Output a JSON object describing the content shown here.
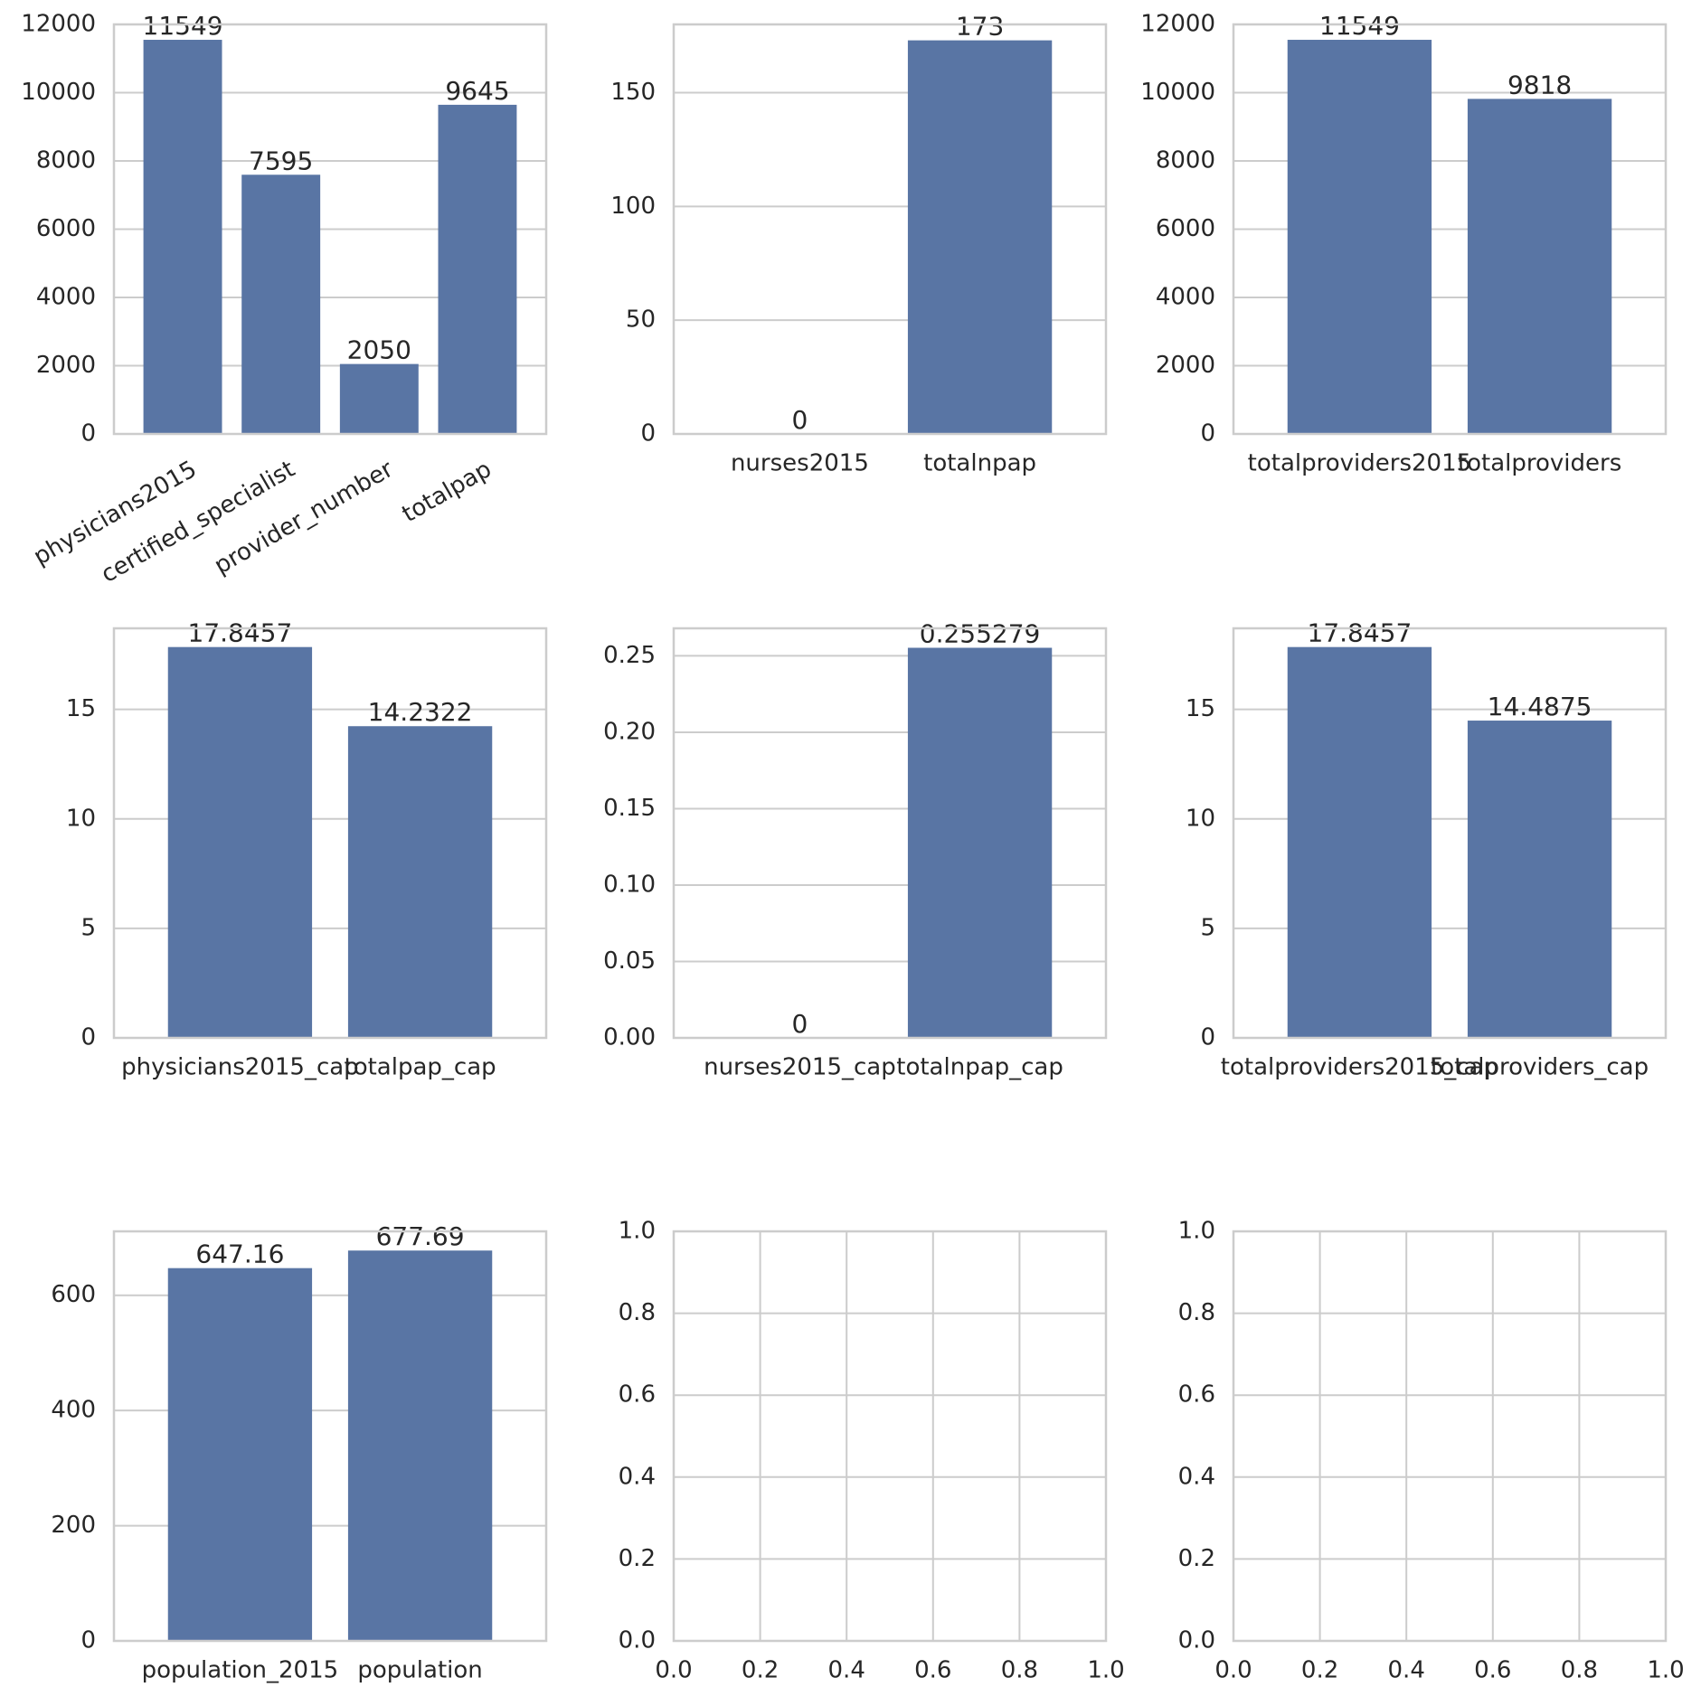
{
  "chart_data": [
    {
      "type": "bar",
      "categories": [
        "physicians2015",
        "certified_specialist",
        "provider_number",
        "totalpap"
      ],
      "values": [
        11549,
        7595,
        2050,
        9645
      ],
      "data_labels": [
        "11549",
        "7595",
        "2050",
        "9645"
      ],
      "ylim": [
        0,
        12000
      ],
      "yticks": [
        "0",
        "2000",
        "4000",
        "6000",
        "8000",
        "10000",
        "12000"
      ],
      "xtick_rotation": 30,
      "grid": "y",
      "color": "#5975a4",
      "title": "",
      "xlabel": "",
      "ylabel": ""
    },
    {
      "type": "bar",
      "categories": [
        "nurses2015",
        "totalnpap"
      ],
      "values": [
        0,
        173
      ],
      "data_labels": [
        "0",
        "173"
      ],
      "ylim": [
        0,
        180
      ],
      "yticks": [
        "0",
        "50",
        "100",
        "150"
      ],
      "grid": "y",
      "color": "#5975a4",
      "title": "",
      "xlabel": "",
      "ylabel": ""
    },
    {
      "type": "bar",
      "categories": [
        "totalproviders2015",
        "totalproviders"
      ],
      "values": [
        11549,
        9818
      ],
      "data_labels": [
        "11549",
        "9818"
      ],
      "ylim": [
        0,
        12000
      ],
      "yticks": [
        "0",
        "2000",
        "4000",
        "6000",
        "8000",
        "10000",
        "12000"
      ],
      "grid": "y",
      "color": "#5975a4",
      "title": "",
      "xlabel": "",
      "ylabel": ""
    },
    {
      "type": "bar",
      "categories": [
        "physicians2015_cap",
        "totalpap_cap"
      ],
      "values": [
        17.8457,
        14.2322
      ],
      "data_labels": [
        "17.8457",
        "14.2322"
      ],
      "ylim": [
        0,
        18.7
      ],
      "yticks": [
        "0",
        "5",
        "10",
        "15"
      ],
      "grid": "y",
      "color": "#5975a4",
      "title": "",
      "xlabel": "",
      "ylabel": ""
    },
    {
      "type": "bar",
      "categories": [
        "nurses2015_cap",
        "totalnpap_cap"
      ],
      "values": [
        0,
        0.255279
      ],
      "data_labels": [
        "0",
        "0.255279"
      ],
      "ylim": [
        0,
        0.268
      ],
      "yticks": [
        "0.00",
        "0.05",
        "0.10",
        "0.15",
        "0.20",
        "0.25"
      ],
      "grid": "y",
      "color": "#5975a4",
      "title": "",
      "xlabel": "",
      "ylabel": ""
    },
    {
      "type": "bar",
      "categories": [
        "totalproviders2015_cap",
        "totalproviders_cap"
      ],
      "values": [
        17.8457,
        14.4875
      ],
      "data_labels": [
        "17.8457",
        "14.4875"
      ],
      "ylim": [
        0,
        18.7
      ],
      "yticks": [
        "0",
        "5",
        "10",
        "15"
      ],
      "grid": "y",
      "color": "#5975a4",
      "title": "",
      "xlabel": "",
      "ylabel": ""
    },
    {
      "type": "bar",
      "categories": [
        "population_2015",
        "population"
      ],
      "values": [
        647.16,
        677.69
      ],
      "data_labels": [
        "647.16",
        "677.69"
      ],
      "ylim": [
        0,
        711
      ],
      "yticks": [
        "0",
        "200",
        "400",
        "600"
      ],
      "grid": "y",
      "color": "#5975a4",
      "title": "",
      "xlabel": "",
      "ylabel": ""
    },
    {
      "type": "empty",
      "xlim": [
        0,
        1
      ],
      "ylim": [
        0,
        1
      ],
      "xticks": [
        "0.0",
        "0.2",
        "0.4",
        "0.6",
        "0.8",
        "1.0"
      ],
      "yticks": [
        "0.0",
        "0.2",
        "0.4",
        "0.6",
        "0.8",
        "1.0"
      ],
      "grid": "both",
      "title": "",
      "xlabel": "",
      "ylabel": ""
    },
    {
      "type": "empty",
      "xlim": [
        0,
        1
      ],
      "ylim": [
        0,
        1
      ],
      "xticks": [
        "0.0",
        "0.2",
        "0.4",
        "0.6",
        "0.8",
        "1.0"
      ],
      "yticks": [
        "0.0",
        "0.2",
        "0.4",
        "0.6",
        "0.8",
        "1.0"
      ],
      "grid": "both",
      "title": "",
      "xlabel": "",
      "ylabel": ""
    }
  ]
}
